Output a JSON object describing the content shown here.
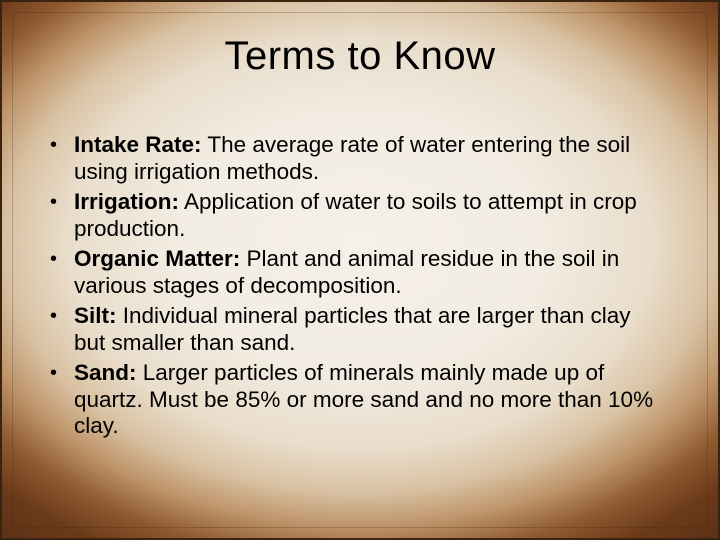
{
  "slide": {
    "title": "Terms to Know",
    "title_fontsize": 40,
    "body_fontsize": 22.5,
    "background": {
      "outer_color": "#4a2712",
      "mid_color": "#8f5a30",
      "inner_color": "#f5f0e8",
      "border_color": "#3a2410"
    },
    "text_color": "#000000",
    "bullets": [
      {
        "term": "Intake Rate:",
        "definition": " The average rate of water entering the soil using irrigation methods."
      },
      {
        "term": "Irrigation:",
        "definition": " Application of water to soils to attempt in crop production."
      },
      {
        "term": "Organic Matter:",
        "definition": " Plant and animal residue in the soil in various stages of decomposition."
      },
      {
        "term": "Silt:",
        "definition": " Individual mineral particles that are larger than clay but smaller than sand."
      },
      {
        "term": "Sand:",
        "definition": " Larger particles of minerals mainly made up of quartz.  Must be 85% or more sand and no more than 10% clay."
      }
    ]
  }
}
